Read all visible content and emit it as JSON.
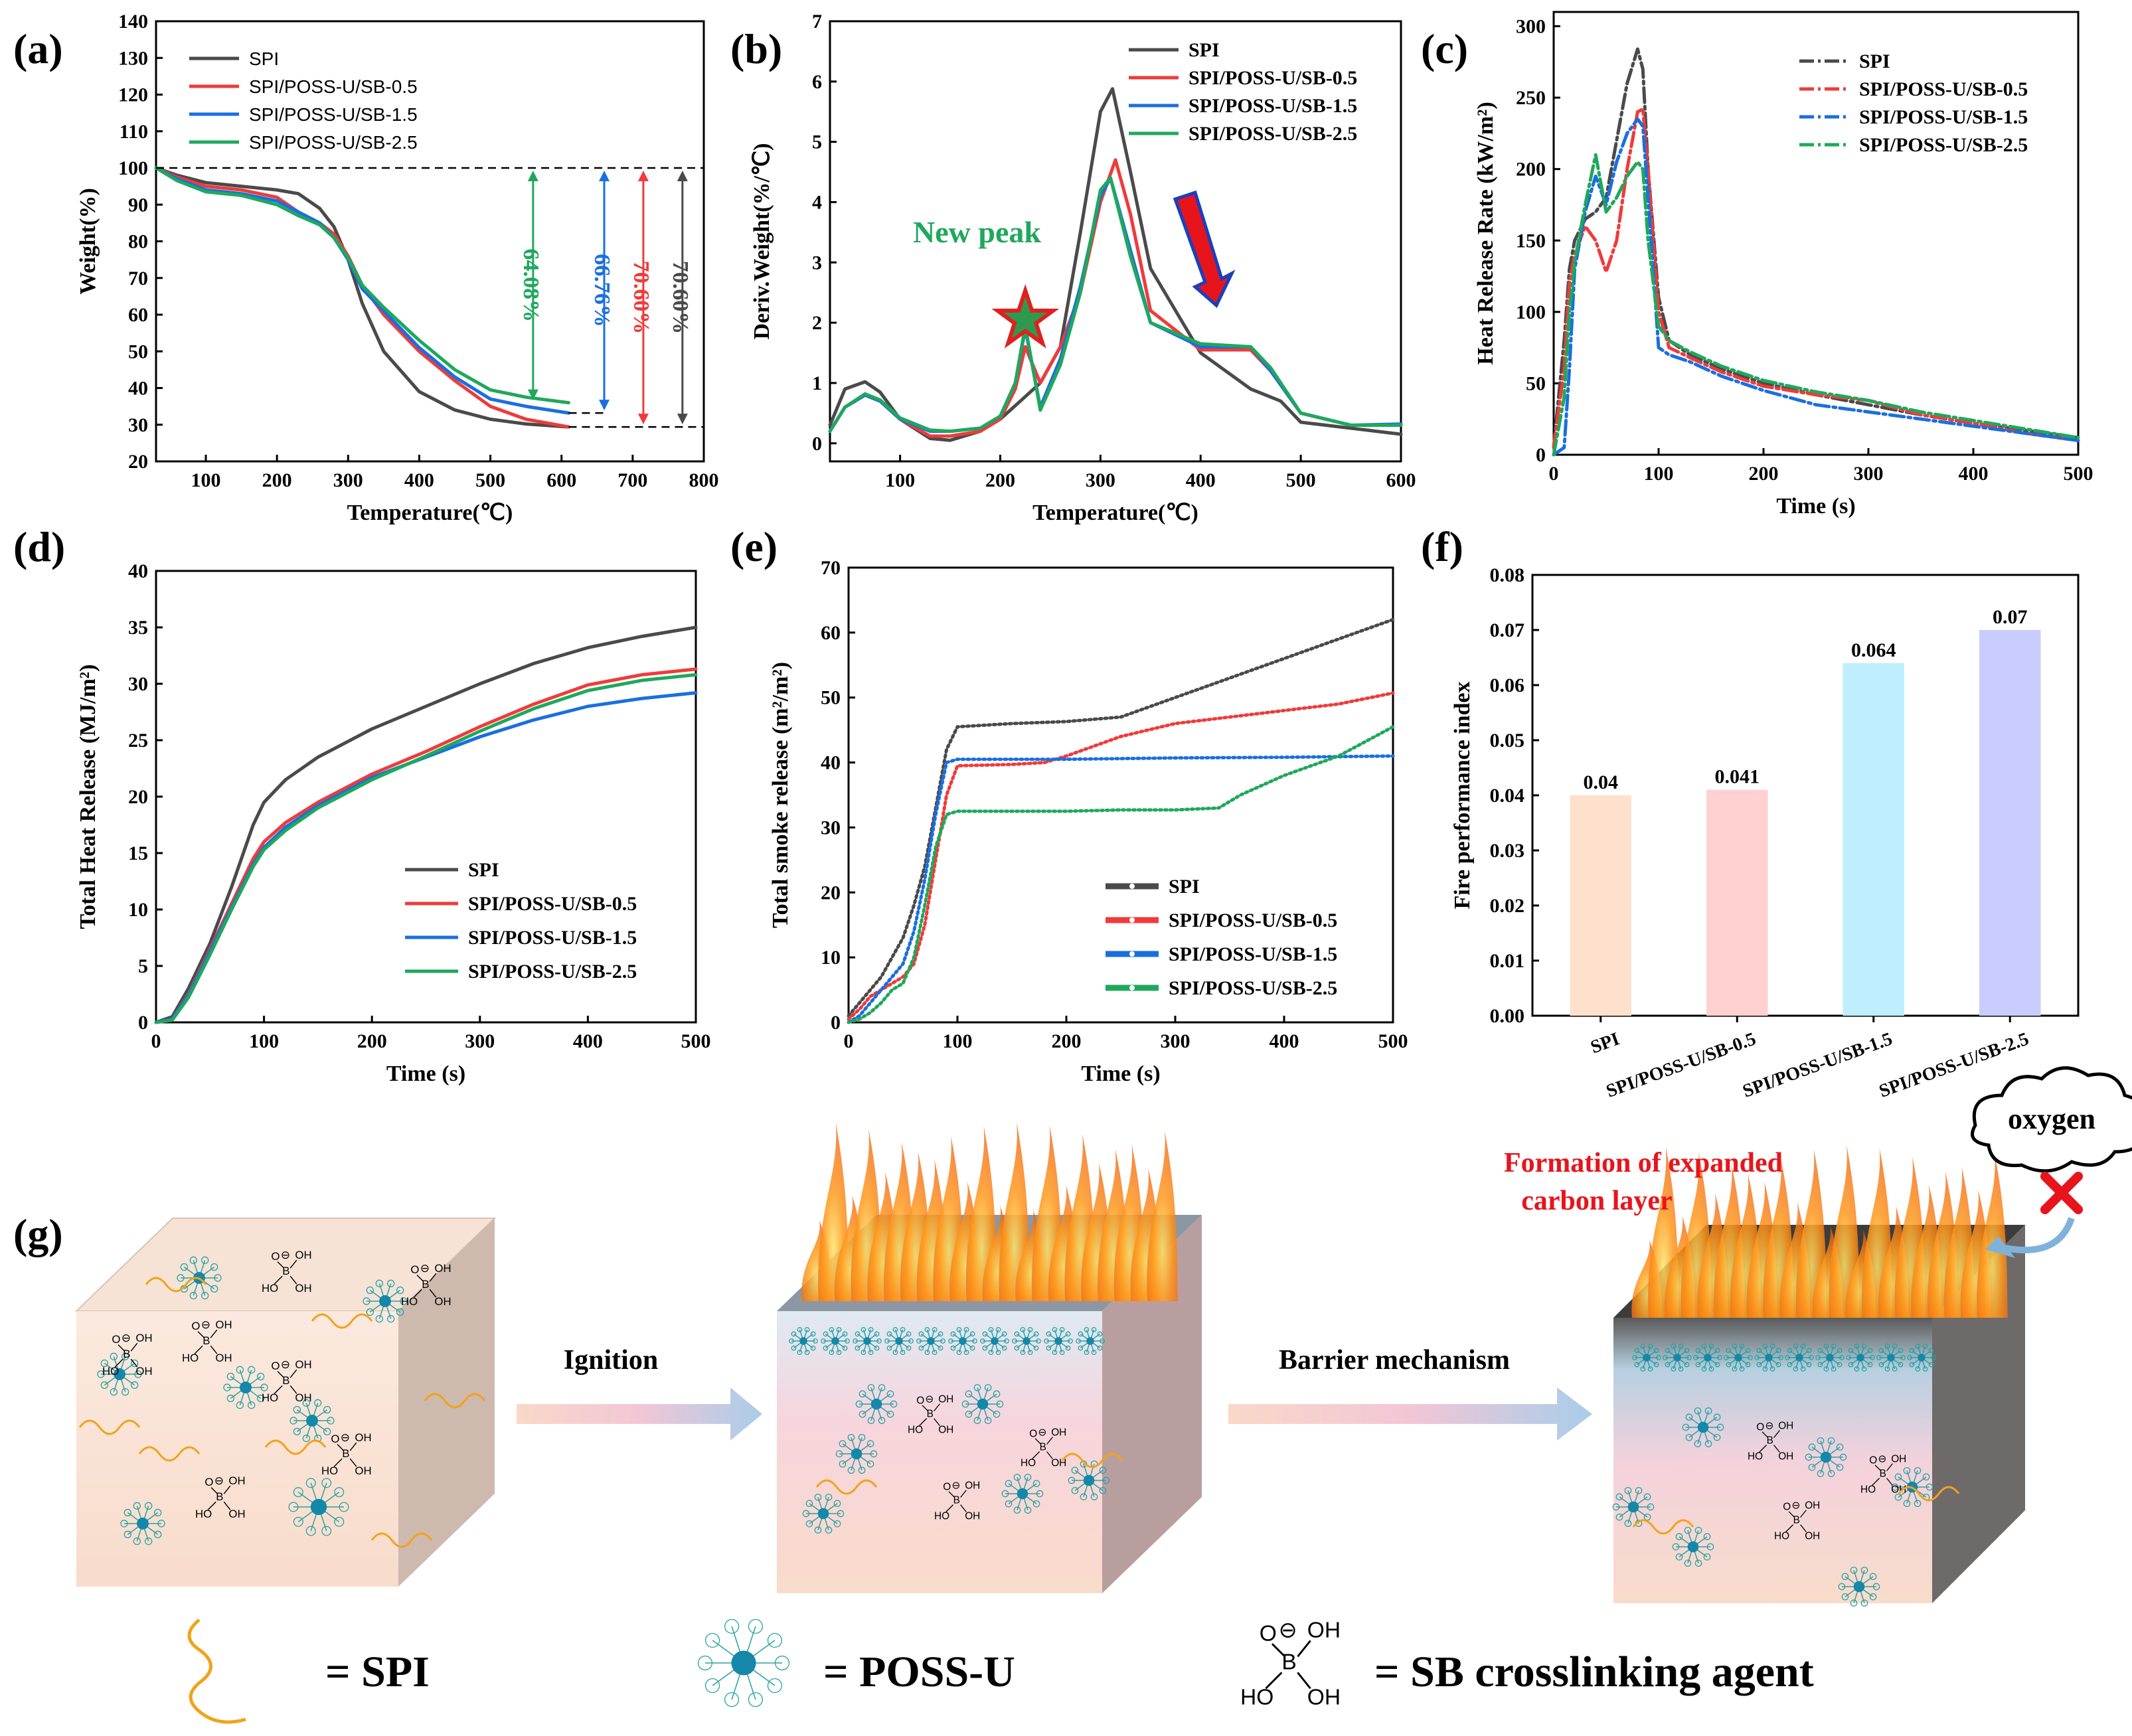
{
  "colors": {
    "SPI": "#4a4a4a",
    "SB05": "#ef3b3b",
    "SB15": "#1a6fe0",
    "SB25": "#1fa85c",
    "fpi_bars": [
      "#fde1cd",
      "#ffd1d1",
      "#bfeeff",
      "#c9ccff"
    ]
  },
  "series_names": [
    "SPI",
    "SPI/POSS-U/SB-0.5",
    "SPI/POSS-U/SB-1.5",
    "SPI/POSS-U/SB-2.5"
  ],
  "chart_data": [
    {
      "id": "a",
      "label": "(a)",
      "type": "line",
      "xlabel": "Temperature(℃)",
      "ylabel": "Weight(%)",
      "xlim": [
        30,
        800
      ],
      "ylim": [
        20,
        140
      ],
      "xticks": [
        100,
        200,
        300,
        400,
        500,
        600,
        700,
        800
      ],
      "yticks": [
        20,
        30,
        40,
        50,
        60,
        70,
        80,
        90,
        100,
        110,
        120,
        130,
        140
      ],
      "legend": "top-left",
      "series": [
        {
          "name": "SPI",
          "x": [
            30,
            60,
            100,
            150,
            200,
            230,
            260,
            280,
            300,
            320,
            350,
            400,
            450,
            500,
            550,
            610
          ],
          "y": [
            100,
            98,
            96,
            95,
            94,
            93,
            89,
            84,
            75,
            63,
            50,
            39,
            34,
            31.5,
            30.2,
            29.4
          ]
        },
        {
          "name": "SPI/POSS-U/SB-0.5",
          "x": [
            30,
            60,
            100,
            150,
            200,
            230,
            260,
            280,
            300,
            320,
            350,
            400,
            450,
            500,
            550,
            610
          ],
          "y": [
            100,
            97.5,
            95,
            94,
            92,
            88,
            85,
            82,
            76,
            68,
            60,
            50,
            42,
            35,
            31.5,
            29.4
          ]
        },
        {
          "name": "SPI/POSS-U/SB-1.5",
          "x": [
            30,
            60,
            100,
            150,
            200,
            230,
            260,
            280,
            300,
            320,
            350,
            400,
            450,
            500,
            550,
            610
          ],
          "y": [
            100,
            97,
            94,
            93,
            91,
            88,
            85,
            81,
            75,
            67,
            61,
            51,
            43,
            37,
            35,
            33.2
          ]
        },
        {
          "name": "SPI/POSS-U/SB-2.5",
          "x": [
            30,
            60,
            100,
            150,
            200,
            230,
            260,
            280,
            300,
            320,
            350,
            400,
            450,
            500,
            550,
            610
          ],
          "y": [
            100,
            96.5,
            93.5,
            92.5,
            90,
            87,
            84.5,
            81,
            75.5,
            68,
            62,
            53,
            45,
            39.5,
            37.5,
            36
          ]
        }
      ],
      "annotations": [
        {
          "text": "64.08%",
          "x": 560,
          "color": "#1fa85c"
        },
        {
          "text": "66.76%",
          "x": 660,
          "color": "#1a6fe0"
        },
        {
          "text": "70.60%",
          "x": 715,
          "color": "#ef3b3b"
        },
        {
          "text": "70.60%",
          "x": 770,
          "color": "#4a4a4a"
        }
      ]
    },
    {
      "id": "b",
      "label": "(b)",
      "type": "line",
      "xlabel": "Temperature(℃)",
      "ylabel": "Deriv.Weight(%/℃)",
      "xlim": [
        30,
        600
      ],
      "ylim": [
        -0.3,
        7
      ],
      "xticks": [
        100,
        200,
        300,
        400,
        500,
        600
      ],
      "yticks": [
        0,
        1,
        2,
        3,
        4,
        5,
        6,
        7
      ],
      "legend": "top-right",
      "new_peak": "New peak",
      "series": [
        {
          "name": "SPI",
          "x": [
            30,
            45,
            65,
            80,
            100,
            130,
            150,
            180,
            200,
            220,
            240,
            260,
            280,
            300,
            312,
            330,
            350,
            400,
            450,
            480,
            500,
            550,
            600
          ],
          "y": [
            0.3,
            0.9,
            1.02,
            0.85,
            0.4,
            0.08,
            0.05,
            0.2,
            0.4,
            0.7,
            1.0,
            1.6,
            3.5,
            5.5,
            5.88,
            4.5,
            2.9,
            1.5,
            0.9,
            0.7,
            0.35,
            0.25,
            0.15
          ]
        },
        {
          "name": "SPI/POSS-U/SB-0.5",
          "x": [
            30,
            45,
            65,
            80,
            100,
            130,
            150,
            180,
            200,
            215,
            225,
            240,
            260,
            280,
            300,
            315,
            330,
            350,
            400,
            450,
            470,
            500,
            550,
            600
          ],
          "y": [
            0.2,
            0.6,
            0.8,
            0.7,
            0.4,
            0.12,
            0.12,
            0.2,
            0.4,
            0.9,
            1.6,
            1.0,
            1.6,
            2.5,
            4.0,
            4.7,
            3.8,
            2.2,
            1.55,
            1.55,
            1.2,
            0.5,
            0.3,
            0.3
          ]
        },
        {
          "name": "SPI/POSS-U/SB-1.5",
          "x": [
            30,
            45,
            65,
            80,
            100,
            130,
            150,
            180,
            200,
            215,
            225,
            240,
            260,
            280,
            300,
            310,
            330,
            350,
            400,
            450,
            470,
            500,
            550,
            600
          ],
          "y": [
            0.2,
            0.6,
            0.8,
            0.7,
            0.4,
            0.2,
            0.2,
            0.25,
            0.45,
            1.0,
            1.9,
            0.6,
            1.4,
            2.6,
            4.1,
            4.4,
            3.2,
            2.0,
            1.6,
            1.6,
            1.2,
            0.5,
            0.3,
            0.32
          ]
        },
        {
          "name": "SPI/POSS-U/SB-2.5",
          "x": [
            30,
            45,
            65,
            80,
            100,
            130,
            150,
            180,
            200,
            215,
            225,
            240,
            260,
            280,
            300,
            310,
            330,
            350,
            400,
            450,
            470,
            500,
            550,
            600
          ],
          "y": [
            0.2,
            0.6,
            0.82,
            0.72,
            0.42,
            0.22,
            0.2,
            0.25,
            0.45,
            1.0,
            1.95,
            0.55,
            1.3,
            2.5,
            4.2,
            4.4,
            3.1,
            2.0,
            1.65,
            1.6,
            1.25,
            0.5,
            0.3,
            0.3
          ]
        }
      ]
    },
    {
      "id": "c",
      "label": "(c)",
      "type": "line",
      "xlabel": "Time (s)",
      "ylabel": "Heat Release Rate (kW/m²)",
      "xlim": [
        0,
        500
      ],
      "ylim": [
        0,
        310
      ],
      "xticks": [
        0,
        100,
        200,
        300,
        400,
        500
      ],
      "yticks": [
        0,
        50,
        100,
        150,
        200,
        250,
        300
      ],
      "legend": "top-right",
      "series": [
        {
          "name": "SPI",
          "x": [
            0,
            10,
            15,
            20,
            30,
            40,
            50,
            60,
            70,
            80,
            85,
            90,
            100,
            110,
            130,
            160,
            200,
            250,
            300,
            350,
            400,
            450,
            500
          ],
          "y": [
            5,
            80,
            130,
            150,
            165,
            170,
            180,
            220,
            260,
            284,
            270,
            200,
            110,
            80,
            70,
            60,
            50,
            42,
            35,
            28,
            22,
            17,
            12
          ]
        },
        {
          "name": "SPI/POSS-U/SB-0.5",
          "x": [
            0,
            10,
            15,
            20,
            30,
            40,
            50,
            60,
            70,
            80,
            85,
            90,
            100,
            110,
            130,
            160,
            200,
            250,
            300,
            350,
            400,
            450,
            500
          ],
          "y": [
            5,
            60,
            120,
            140,
            160,
            150,
            128,
            150,
            200,
            240,
            242,
            200,
            100,
            75,
            68,
            58,
            48,
            42,
            38,
            28,
            22,
            15,
            10
          ]
        },
        {
          "name": "SPI/POSS-U/SB-1.5",
          "x": [
            0,
            10,
            15,
            20,
            30,
            40,
            50,
            60,
            70,
            80,
            85,
            90,
            100,
            110,
            130,
            160,
            200,
            250,
            300,
            350,
            400,
            450,
            500
          ],
          "y": [
            0,
            5,
            60,
            130,
            170,
            195,
            175,
            205,
            225,
            235,
            230,
            180,
            75,
            70,
            65,
            55,
            45,
            35,
            30,
            25,
            20,
            15,
            10
          ]
        },
        {
          "name": "SPI/POSS-U/SB-2.5",
          "x": [
            0,
            10,
            15,
            20,
            30,
            40,
            50,
            60,
            70,
            80,
            85,
            90,
            100,
            110,
            130,
            160,
            200,
            250,
            300,
            350,
            400,
            450,
            500
          ],
          "y": [
            0,
            40,
            100,
            135,
            175,
            210,
            170,
            180,
            195,
            205,
            200,
            150,
            90,
            80,
            72,
            62,
            52,
            44,
            38,
            30,
            24,
            18,
            12
          ]
        }
      ]
    },
    {
      "id": "d",
      "label": "(d)",
      "type": "line",
      "xlabel": "Time (s)",
      "ylabel": "Total Heat Release (MJ/m²)",
      "xlim": [
        0,
        500
      ],
      "ylim": [
        0,
        40
      ],
      "xticks": [
        0,
        100,
        200,
        300,
        400,
        500
      ],
      "yticks": [
        0,
        5,
        10,
        15,
        20,
        25,
        30,
        35,
        40
      ],
      "legend": "bottom-right",
      "series": [
        {
          "name": "SPI",
          "x": [
            0,
            15,
            30,
            50,
            70,
            90,
            100,
            120,
            150,
            200,
            250,
            300,
            350,
            400,
            450,
            500
          ],
          "y": [
            0,
            0.5,
            3,
            7,
            12,
            17.5,
            19.5,
            21.5,
            23.5,
            26,
            28,
            30,
            31.8,
            33.2,
            34.2,
            35
          ]
        },
        {
          "name": "SPI/POSS-U/SB-0.5",
          "x": [
            0,
            15,
            30,
            50,
            70,
            90,
            100,
            120,
            150,
            200,
            250,
            300,
            350,
            400,
            450,
            500
          ],
          "y": [
            0,
            0.3,
            2.5,
            6.5,
            10.5,
            14.5,
            16,
            17.7,
            19.5,
            22,
            24,
            26.2,
            28.2,
            29.9,
            30.8,
            31.3
          ]
        },
        {
          "name": "SPI/POSS-U/SB-1.5",
          "x": [
            0,
            15,
            30,
            50,
            70,
            90,
            100,
            120,
            150,
            200,
            250,
            300,
            350,
            400,
            450,
            500
          ],
          "y": [
            0,
            0.3,
            2.4,
            6.3,
            10.2,
            14,
            15.5,
            17.3,
            19.2,
            21.7,
            23.5,
            25.3,
            26.8,
            28,
            28.7,
            29.2
          ]
        },
        {
          "name": "SPI/POSS-U/SB-2.5",
          "x": [
            0,
            15,
            30,
            50,
            70,
            90,
            100,
            120,
            150,
            200,
            250,
            300,
            350,
            400,
            450,
            500
          ],
          "y": [
            0,
            0.2,
            2.2,
            6,
            10,
            13.8,
            15.3,
            17,
            19,
            21.5,
            23.6,
            25.8,
            27.8,
            29.4,
            30.3,
            30.8
          ]
        }
      ]
    },
    {
      "id": "e",
      "label": "(e)",
      "type": "line",
      "xlabel": "Time (s)",
      "ylabel": "Total smoke release (m²/m²)",
      "xlim": [
        0,
        500
      ],
      "ylim": [
        0,
        70
      ],
      "xticks": [
        0,
        100,
        200,
        300,
        400,
        500
      ],
      "yticks": [
        0,
        10,
        20,
        30,
        40,
        50,
        60,
        70
      ],
      "legend": "bottom-right",
      "series": [
        {
          "name": "SPI",
          "x": [
            0,
            10,
            20,
            30,
            40,
            50,
            60,
            70,
            80,
            90,
            100,
            150,
            200,
            250,
            300,
            350,
            400,
            450,
            500
          ],
          "y": [
            1,
            3,
            5,
            7,
            10,
            13,
            18,
            24,
            33,
            42,
            45.5,
            46,
            46.3,
            47,
            50,
            53,
            56,
            59,
            62
          ]
        },
        {
          "name": "SPI/POSS-U/SB-0.5",
          "x": [
            0,
            10,
            20,
            30,
            40,
            50,
            60,
            70,
            80,
            90,
            100,
            150,
            180,
            200,
            250,
            300,
            350,
            400,
            450,
            500
          ],
          "y": [
            0.5,
            2,
            4,
            5,
            6,
            7,
            9,
            15,
            25,
            35,
            39.5,
            39.7,
            40,
            41,
            44,
            46,
            47,
            48,
            49,
            50.7
          ]
        },
        {
          "name": "SPI/POSS-U/SB-1.5",
          "x": [
            0,
            10,
            20,
            30,
            40,
            50,
            60,
            70,
            80,
            90,
            100,
            150,
            200,
            300,
            400,
            500
          ],
          "y": [
            0,
            1,
            3,
            5,
            7,
            9,
            14,
            22,
            32,
            40,
            40.5,
            40.5,
            40.5,
            40.7,
            40.8,
            41
          ]
        },
        {
          "name": "SPI/POSS-U/SB-2.5",
          "x": [
            0,
            10,
            20,
            30,
            40,
            50,
            60,
            70,
            80,
            90,
            100,
            150,
            200,
            250,
            300,
            340,
            360,
            400,
            450,
            500
          ],
          "y": [
            0,
            0.5,
            1.5,
            3,
            5,
            6,
            10,
            18,
            27,
            32,
            32.5,
            32.5,
            32.5,
            32.7,
            32.7,
            33,
            35,
            38,
            41,
            45.5
          ]
        }
      ]
    },
    {
      "id": "f",
      "label": "(f)",
      "type": "bar",
      "xlabel": "",
      "ylabel": "Fire performance index",
      "ylim": [
        0,
        0.08
      ],
      "yticks": [
        "0.00",
        "0.01",
        "0.02",
        "0.03",
        "0.04",
        "0.05",
        "0.06",
        "0.07",
        "0.08"
      ],
      "categories": [
        "SPI",
        "SPI/POSS-U/SB-0.5",
        "SPI/POSS-U/SB-1.5",
        "SPI/POSS-U/SB-2.5"
      ],
      "values": [
        0.04,
        0.041,
        0.064,
        0.07
      ],
      "value_labels": [
        "0.04",
        "0.041",
        "0.064",
        "0.07"
      ]
    }
  ],
  "schematic": {
    "label": "(g)",
    "arrow1": "Ignition",
    "arrow2": "Barrier mechanism",
    "oxygen": "oxygen",
    "formation_line1": "Formation of expanded",
    "formation_line2": "carbon layer",
    "chem": {
      "o": "O",
      "b": "B",
      "oh": "OH",
      "ho": "HO",
      "minus": "⊖"
    },
    "legend": [
      {
        "symbol": "wavy-line",
        "text": "=  SPI"
      },
      {
        "symbol": "poss-u",
        "text": "=  POSS-U"
      },
      {
        "symbol": "sb",
        "text": "=  SB crosslinking agent"
      }
    ]
  }
}
